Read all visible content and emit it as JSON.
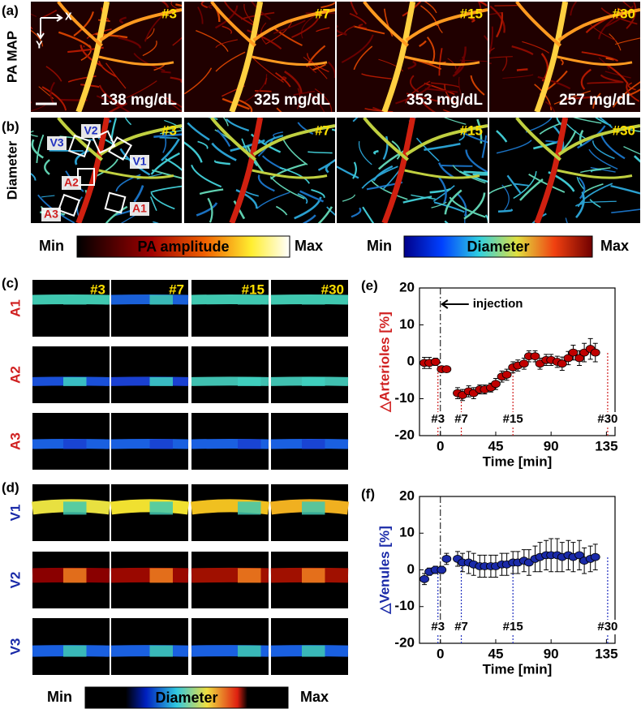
{
  "panel_a": {
    "label": "(a)",
    "row_label": "PA MAP",
    "axis_x": "X",
    "axis_y": "Y",
    "images": [
      {
        "tag": "#3",
        "glucose": "138 mg/dL"
      },
      {
        "tag": "#7",
        "glucose": "325 mg/dL"
      },
      {
        "tag": "#15",
        "glucose": "353 mg/dL"
      },
      {
        "tag": "#30",
        "glucose": "257 mg/dL"
      }
    ]
  },
  "panel_b": {
    "label": "(b)",
    "row_label": "Diameter",
    "images": [
      {
        "tag": "#3"
      },
      {
        "tag": "#7"
      },
      {
        "tag": "#15"
      },
      {
        "tag": "#30"
      }
    ],
    "roi_labels": [
      "V1",
      "V2",
      "V3",
      "A1",
      "A2",
      "A3"
    ]
  },
  "colorbars": [
    {
      "min": "Min",
      "title": "PA amplitude",
      "max": "Max"
    },
    {
      "min": "Min",
      "title": "Diameter",
      "max": "Max"
    }
  ],
  "panel_c": {
    "label": "(c)",
    "columns": [
      "#3",
      "#7",
      "#15",
      "#30"
    ],
    "rows": [
      "A1",
      "A2",
      "A3"
    ]
  },
  "panel_d": {
    "label": "(d)",
    "rows": [
      "V1",
      "V2",
      "V3"
    ]
  },
  "bottom_colorbar": {
    "min": "Min",
    "title": "Diameter",
    "max": "Max"
  },
  "chart_data": [
    {
      "type": "errorbar",
      "panel_label": "(e)",
      "ylabel": "△Arterioles [%]",
      "xlabel": "Time [min]",
      "label_color": "#d02020",
      "color": "#c00000",
      "marker_color": "#d02020",
      "annotation": "injection",
      "injection_x": 0,
      "xlim": [
        -17,
        142
      ],
      "xticks": [
        0,
        45,
        90,
        135
      ],
      "ylim": [
        -20,
        20
      ],
      "yticks": [
        -20,
        -10,
        0,
        10,
        20
      ],
      "markers": [
        {
          "label": "#3",
          "x": -2
        },
        {
          "label": "#7",
          "x": 17
        },
        {
          "label": "#15",
          "x": 59
        },
        {
          "label": "#30",
          "x": 136
        }
      ],
      "x": [
        -13,
        -9,
        -4,
        1,
        5,
        14,
        18,
        23,
        27,
        32,
        36,
        41,
        45,
        50,
        54,
        59,
        63,
        68,
        72,
        77,
        81,
        86,
        90,
        95,
        99,
        104,
        108,
        113,
        117,
        122,
        126
      ],
      "values": [
        -0.3,
        -0.3,
        0,
        -2,
        -2,
        -8.5,
        -9,
        -8,
        -8.5,
        -7.5,
        -7.5,
        -7,
        -6,
        -4,
        -3.5,
        -1.5,
        -1,
        -0.5,
        1.5,
        1.5,
        -0.5,
        0.5,
        0.5,
        0,
        -0.5,
        1,
        2.5,
        1,
        2.5,
        3.5,
        2.5
      ],
      "errors": [
        1.5,
        1.5,
        1,
        0.8,
        0.8,
        1.5,
        1.5,
        1.5,
        1.5,
        1.2,
        1.2,
        1.2,
        1.5,
        1.5,
        1.5,
        1.5,
        1.5,
        1.5,
        1.5,
        1.5,
        1.5,
        1.5,
        1.5,
        1.5,
        1.8,
        1.8,
        2,
        2,
        2.5,
        2.8,
        2.5
      ]
    },
    {
      "type": "errorbar",
      "panel_label": "(f)",
      "ylabel": "△Venules [%]",
      "xlabel": "Time [min]",
      "label_color": "#1a2aa8",
      "color": "#1a2aa8",
      "marker_color": "#2030c0",
      "injection_x": 0,
      "xlim": [
        -17,
        142
      ],
      "xticks": [
        0,
        45,
        90,
        135
      ],
      "ylim": [
        -20,
        20
      ],
      "yticks": [
        -20,
        -10,
        0,
        10,
        20
      ],
      "markers": [
        {
          "label": "#3",
          "x": -2
        },
        {
          "label": "#7",
          "x": 17
        },
        {
          "label": "#15",
          "x": 59
        },
        {
          "label": "#30",
          "x": 136
        }
      ],
      "x": [
        -13,
        -9,
        -4,
        1,
        5,
        14,
        18,
        23,
        27,
        32,
        36,
        41,
        45,
        50,
        54,
        59,
        63,
        68,
        72,
        77,
        81,
        86,
        90,
        95,
        99,
        104,
        108,
        113,
        117,
        122,
        126
      ],
      "values": [
        -2.5,
        -0.5,
        0,
        0,
        3,
        3,
        2,
        2,
        1.5,
        1,
        1,
        1,
        1,
        1.5,
        1.5,
        2,
        2,
        2.5,
        2,
        3,
        3.5,
        4,
        4,
        4,
        3.5,
        4,
        3.5,
        4,
        2.5,
        3,
        3.5
      ],
      "errors": [
        1.5,
        1,
        1,
        1,
        1.5,
        2,
        2.5,
        3,
        3,
        3,
        3,
        3,
        3,
        3,
        3,
        3,
        3,
        3,
        3.5,
        3.5,
        4,
        4,
        4.5,
        4.5,
        4,
        4,
        4,
        4,
        3.5,
        3.5,
        3.5
      ]
    }
  ]
}
